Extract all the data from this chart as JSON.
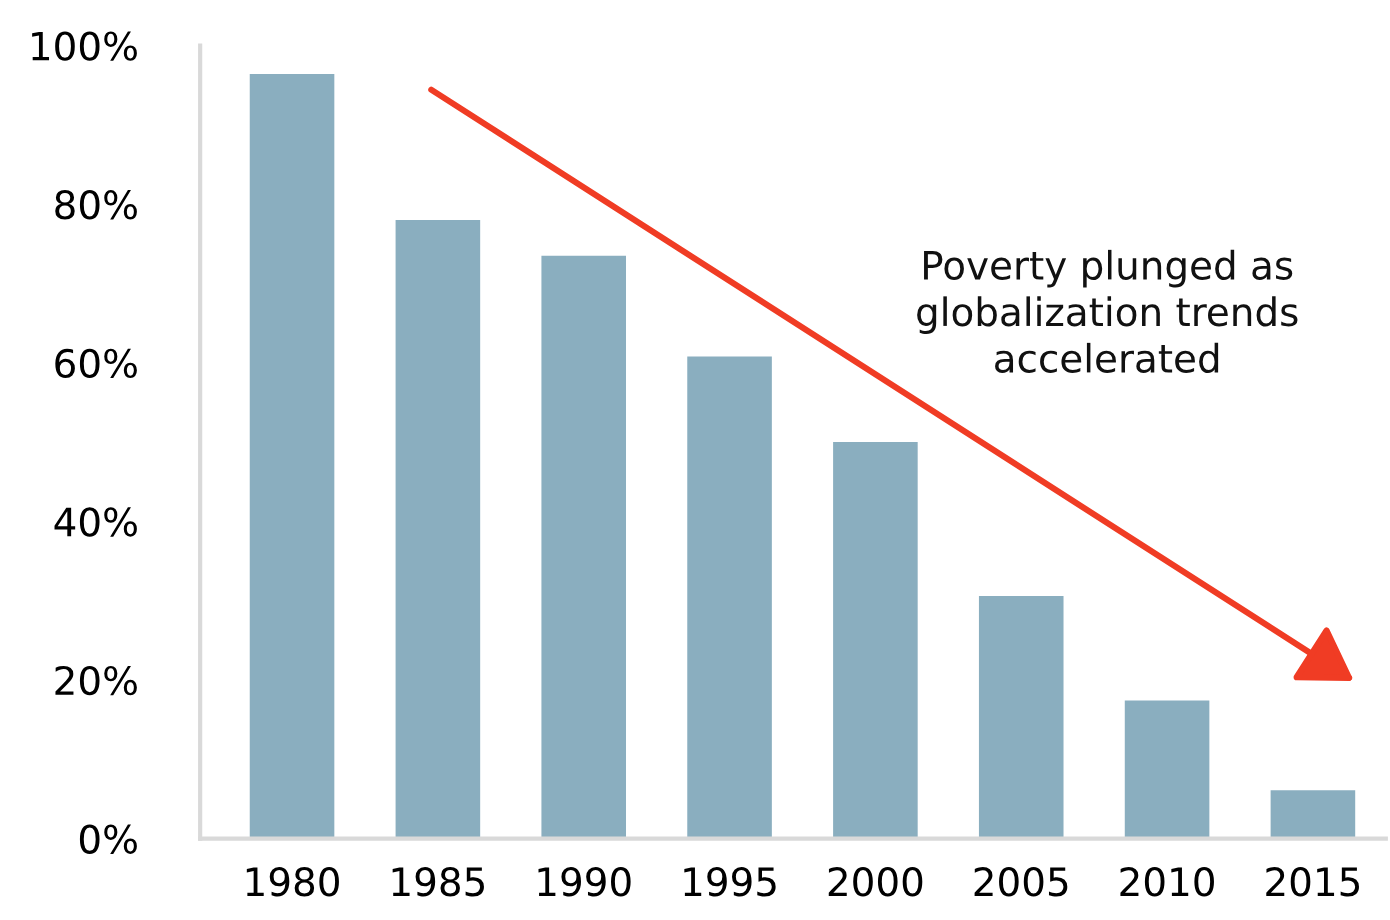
{
  "chart_data": {
    "type": "bar",
    "categories": [
      "1980",
      "1985",
      "1990",
      "1995",
      "2000",
      "2005",
      "2010",
      "2015"
    ],
    "values": [
      96.4,
      78.0,
      73.5,
      60.8,
      50.0,
      30.6,
      17.4,
      6.1
    ],
    "color": "#8aaebf",
    "ylim": [
      0,
      100
    ],
    "yticks": [
      {
        "value": 0,
        "label": "0%"
      },
      {
        "value": 20,
        "label": "20%"
      },
      {
        "value": 40,
        "label": "40%"
      },
      {
        "value": 60,
        "label": "60%"
      },
      {
        "value": 80,
        "label": "80%"
      },
      {
        "value": 100,
        "label": "100%"
      }
    ],
    "grid": false,
    "annotations": [
      "Poverty plunged as\nglobalization trends\naccelerated"
    ]
  }
}
